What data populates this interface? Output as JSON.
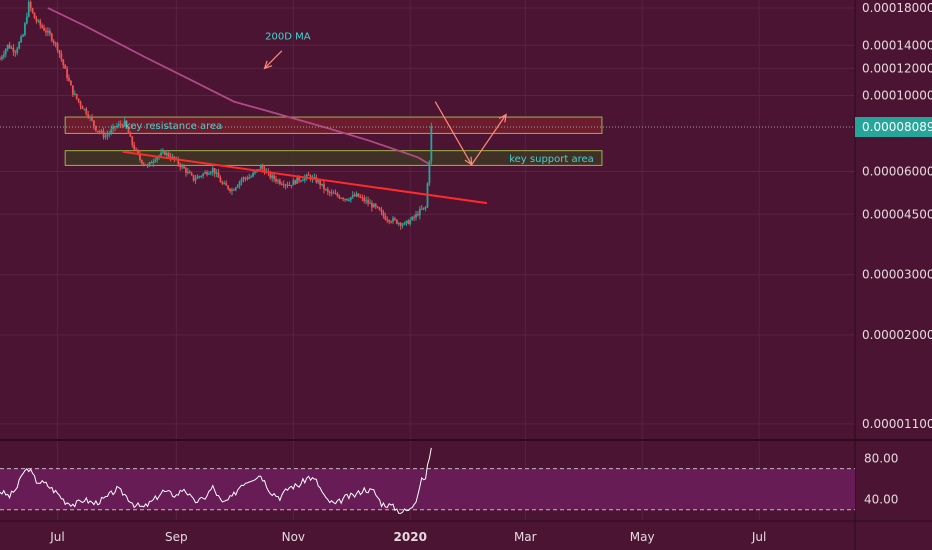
{
  "colors": {
    "background": "#4a1432",
    "grid": "#5b2243",
    "up_candle": "#26a69a",
    "down_candle": "#ef5350",
    "ma": "#b04a86",
    "trendline": "#ff2a2a",
    "resistance_zone": "#7a1f2e",
    "support_zone": "#3e3a22",
    "zone_border": "#9bb54a",
    "annotation_arrow": "#ff8a7a",
    "annotation_text": "#3dd6d0",
    "rsi_line": "#ffffff",
    "rsi_band": "#6a1d5a",
    "price_badge": "#26a69a"
  },
  "chart_data": [
    {
      "type": "candlestick",
      "scale": "log",
      "title": "",
      "price_axis_ticks": [
        "0.00018000",
        "0.00014000",
        "0.00012000",
        "0.00010000",
        "0.00006000",
        "0.00004500",
        "0.00003000",
        "0.00002000",
        "0.00001100"
      ],
      "time_axis_ticks": [
        "Jul",
        "Sep",
        "Nov",
        "2020",
        "Mar",
        "May",
        "Jul"
      ],
      "current_price": "0.00008089",
      "ylim": [
        1e-05,
        0.00019
      ],
      "ohlc_path": [
        [
          "2019-06-01",
          0.000128
        ],
        [
          "2019-06-05",
          0.00014
        ],
        [
          "2019-06-09",
          0.000135
        ],
        [
          "2019-06-13",
          0.00015
        ],
        [
          "2019-06-16",
          0.000185
        ],
        [
          "2019-06-19",
          0.000168
        ],
        [
          "2019-06-23",
          0.000158
        ],
        [
          "2019-06-27",
          0.00015
        ],
        [
          "2019-07-01",
          0.000138
        ],
        [
          "2019-07-05",
          0.000118
        ],
        [
          "2019-07-09",
          0.000102
        ],
        [
          "2019-07-13",
          9.4e-05
        ],
        [
          "2019-07-17",
          8.8e-05
        ],
        [
          "2019-07-21",
          8e-05
        ],
        [
          "2019-07-26",
          7.6e-05
        ],
        [
          "2019-07-31",
          8.1e-05
        ],
        [
          "2019-08-05",
          8.3e-05
        ],
        [
          "2019-08-09",
          7.2e-05
        ],
        [
          "2019-08-13",
          6.5e-05
        ],
        [
          "2019-08-17",
          6.2e-05
        ],
        [
          "2019-08-21",
          6.6e-05
        ],
        [
          "2019-08-26",
          6.8e-05
        ],
        [
          "2019-08-31",
          6.5e-05
        ],
        [
          "2019-09-05",
          6.1e-05
        ],
        [
          "2019-09-10",
          5.7e-05
        ],
        [
          "2019-09-15",
          5.9e-05
        ],
        [
          "2019-09-20",
          6.1e-05
        ],
        [
          "2019-09-25",
          5.5e-05
        ],
        [
          "2019-09-30",
          5.3e-05
        ],
        [
          "2019-10-05",
          5.7e-05
        ],
        [
          "2019-10-10",
          5.8e-05
        ],
        [
          "2019-10-15",
          6.2e-05
        ],
        [
          "2019-10-20",
          5.8e-05
        ],
        [
          "2019-10-25",
          5.6e-05
        ],
        [
          "2019-10-30",
          5.5e-05
        ],
        [
          "2019-11-04",
          5.7e-05
        ],
        [
          "2019-11-09",
          5.8e-05
        ],
        [
          "2019-11-14",
          5.6e-05
        ],
        [
          "2019-11-19",
          5.2e-05
        ],
        [
          "2019-11-24",
          5.1e-05
        ],
        [
          "2019-11-29",
          5e-05
        ],
        [
          "2019-12-04",
          5.1e-05
        ],
        [
          "2019-12-09",
          4.9e-05
        ],
        [
          "2019-12-14",
          4.7e-05
        ],
        [
          "2019-12-19",
          4.4e-05
        ],
        [
          "2019-12-24",
          4.3e-05
        ],
        [
          "2019-12-29",
          4.2e-05
        ],
        [
          "2020-01-03",
          4.4e-05
        ],
        [
          "2020-01-06",
          4.6e-05
        ],
        [
          "2020-01-09",
          4.7e-05
        ],
        [
          "2020-01-11",
          6.5e-05
        ],
        [
          "2020-01-12",
          8.09e-05
        ]
      ],
      "indicators": {
        "moving_average": {
          "name": "200D MA",
          "points": [
            [
              "2019-06-26",
              0.00018
            ],
            [
              "2019-07-15",
              0.00016
            ],
            [
              "2019-08-15",
              0.00013
            ],
            [
              "2019-09-10",
              0.00011
            ],
            [
              "2019-10-01",
              9.6e-05
            ],
            [
              "2019-10-25",
              8.8e-05
            ],
            [
              "2019-11-20",
              8e-05
            ],
            [
              "2019-12-10",
              7.4e-05
            ],
            [
              "2020-01-05",
              6.6e-05
            ],
            [
              "2020-01-11",
              6.3e-05
            ]
          ]
        },
        "trendline": {
          "from": [
            "2019-08-04",
            6.85e-05
          ],
          "to": [
            "2020-02-10",
            4.85e-05
          ]
        }
      },
      "zones": [
        {
          "label": "key resistance area",
          "from": "2019-07-05",
          "to": "2020-04-10",
          "low": 7.75e-05,
          "high": 8.65e-05
        },
        {
          "label": "key support area",
          "from": "2019-07-05",
          "to": "2020-04-10",
          "low": 6.25e-05,
          "high": 6.9e-05
        }
      ],
      "annotations": [
        {
          "label": "200D MA"
        }
      ]
    },
    {
      "type": "line",
      "title": "",
      "y_axis_ticks": [
        "80.00",
        "40.00"
      ],
      "overbought": 70,
      "oversold": 30,
      "ylim": [
        20,
        95
      ],
      "series": [
        {
          "values": [
            [
              "2019-06-01",
              48
            ],
            [
              "2019-06-06",
              43
            ],
            [
              "2019-06-10",
              52
            ],
            [
              "2019-06-13",
              66
            ],
            [
              "2019-06-16",
              70
            ],
            [
              "2019-06-20",
              58
            ],
            [
              "2019-06-25",
              55
            ],
            [
              "2019-07-01",
              46
            ],
            [
              "2019-07-05",
              38
            ],
            [
              "2019-07-10",
              35
            ],
            [
              "2019-07-15",
              40
            ],
            [
              "2019-07-20",
              36
            ],
            [
              "2019-07-26",
              41
            ],
            [
              "2019-08-01",
              50
            ],
            [
              "2019-08-05",
              45
            ],
            [
              "2019-08-10",
              35
            ],
            [
              "2019-08-15",
              32
            ],
            [
              "2019-08-20",
              39
            ],
            [
              "2019-08-25",
              48
            ],
            [
              "2019-09-01",
              44
            ],
            [
              "2019-09-05",
              51
            ],
            [
              "2019-09-10",
              38
            ],
            [
              "2019-09-15",
              40
            ],
            [
              "2019-09-20",
              52
            ],
            [
              "2019-09-25",
              36
            ],
            [
              "2019-09-30",
              42
            ],
            [
              "2019-10-05",
              55
            ],
            [
              "2019-10-10",
              60
            ],
            [
              "2019-10-15",
              64
            ],
            [
              "2019-10-20",
              48
            ],
            [
              "2019-10-25",
              42
            ],
            [
              "2019-10-30",
              52
            ],
            [
              "2019-11-04",
              54
            ],
            [
              "2019-11-09",
              62
            ],
            [
              "2019-11-13",
              58
            ],
            [
              "2019-11-18",
              40
            ],
            [
              "2019-11-23",
              35
            ],
            [
              "2019-11-28",
              42
            ],
            [
              "2019-12-03",
              44
            ],
            [
              "2019-12-08",
              50
            ],
            [
              "2019-12-13",
              48
            ],
            [
              "2019-12-17",
              36
            ],
            [
              "2019-12-22",
              34
            ],
            [
              "2019-12-27",
              28
            ],
            [
              "2020-01-01",
              30
            ],
            [
              "2020-01-04",
              40
            ],
            [
              "2020-01-07",
              62
            ],
            [
              "2020-01-09",
              60
            ],
            [
              "2020-01-11",
              82
            ],
            [
              "2020-01-12",
              88
            ]
          ]
        }
      ]
    }
  ]
}
